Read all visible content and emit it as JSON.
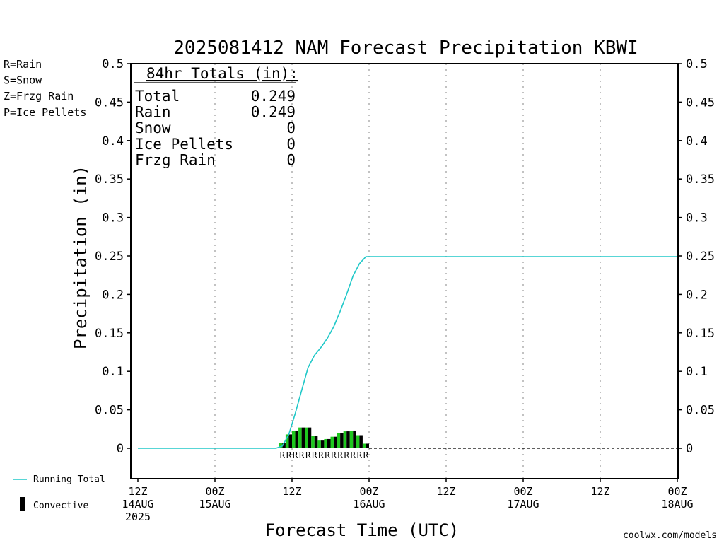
{
  "chart_data": {
    "type": "bar",
    "title": "2025081412 NAM Forecast Precipitation KBWI",
    "xlabel": "Forecast Time (UTC)",
    "ylabel": "Precipitation (in)",
    "ylim": [
      0,
      0.5
    ],
    "y_ticks": [
      "0",
      "0.05",
      "0.1",
      "0.15",
      "0.2",
      "0.25",
      "0.3",
      "0.35",
      "0.4",
      "0.45",
      "0.5"
    ],
    "xlim_hours": [
      0,
      84
    ],
    "grid": "vertical dotted",
    "x_ticks": [
      {
        "hour": 0,
        "lines": [
          "12Z",
          "14AUG",
          "2025"
        ]
      },
      {
        "hour": 12,
        "lines": [
          "00Z",
          "15AUG"
        ]
      },
      {
        "hour": 24,
        "lines": [
          "12Z"
        ]
      },
      {
        "hour": 36,
        "lines": [
          "00Z",
          "16AUG"
        ]
      },
      {
        "hour": 48,
        "lines": [
          "12Z"
        ]
      },
      {
        "hour": 60,
        "lines": [
          "00Z",
          "17AUG"
        ]
      },
      {
        "hour": 72,
        "lines": [
          "12Z"
        ]
      },
      {
        "hour": 84,
        "lines": [
          "00Z",
          "18AUG"
        ]
      }
    ],
    "bars": {
      "name": "Convective",
      "hours": [
        23,
        24,
        25,
        26,
        27,
        28,
        29,
        30,
        31,
        32,
        33,
        34,
        35,
        36
      ],
      "values": [
        0.007,
        0.018,
        0.023,
        0.027,
        0.027,
        0.016,
        0.01,
        0.012,
        0.015,
        0.02,
        0.022,
        0.023,
        0.017,
        0.006
      ],
      "types": "RRRRRRRRRRRRRR"
    },
    "running_total": {
      "name": "Running Total",
      "hours": [
        0,
        12,
        21.5,
        22.5,
        23.5,
        24.5,
        25.5,
        26.5,
        27.5,
        28.5,
        29.5,
        30.5,
        31.5,
        32.5,
        33.5,
        34.5,
        35.5,
        36,
        48,
        60,
        72,
        84
      ],
      "values": [
        0,
        0,
        0,
        0.003,
        0.018,
        0.045,
        0.075,
        0.105,
        0.121,
        0.131,
        0.143,
        0.158,
        0.178,
        0.2,
        0.224,
        0.24,
        0.249,
        0.249,
        0.249,
        0.249,
        0.249,
        0.249
      ]
    },
    "totals_box": {
      "header": "84hr Totals (in):",
      "rows": [
        {
          "label": "Total",
          "value": "0.249"
        },
        {
          "label": "Rain",
          "value": "0.249"
        },
        {
          "label": "Snow",
          "value": "0"
        },
        {
          "label": "Ice Pellets",
          "value": "0"
        },
        {
          "label": "Frzg Rain",
          "value": "0"
        }
      ]
    },
    "type_key": [
      {
        "text": "R=Rain",
        "color": "#1ec81e"
      },
      {
        "text": "S=Snow",
        "color": "#3c64e6"
      },
      {
        "text": "Z=Frzg Rain",
        "color": "#f08c32"
      },
      {
        "text": "P=Ice Pellets",
        "color": "#dc28a0"
      }
    ],
    "legend": {
      "running_total_label": "Running Total",
      "convective_label": "Convective"
    },
    "colors": {
      "running_total": "#20c8c8",
      "bar_fill": "#1ec81e",
      "bar_convective": "#000000",
      "rain_code": "#1ec81e"
    },
    "credit": "coolwx.com/models"
  }
}
